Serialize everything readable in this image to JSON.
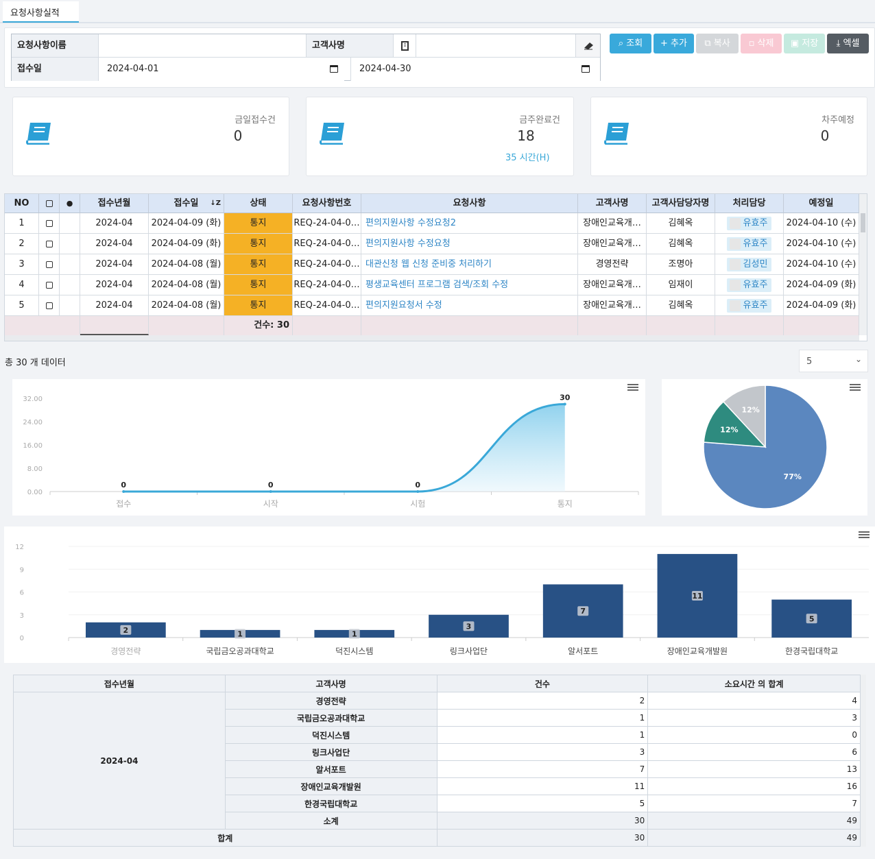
{
  "tab": {
    "label": "요청사항실적"
  },
  "filters": {
    "request_name_label": "요청사항이름",
    "request_name_value": "",
    "customer_label": "고객사명",
    "customer_value": "",
    "date_label": "접수일",
    "date_from": "2024-04-01",
    "date_to": "2024-04-30"
  },
  "toolbar": {
    "search": "조회",
    "add": "추가",
    "copy": "복사",
    "delete": "삭제",
    "save": "저장",
    "excel": "엑셀"
  },
  "cards": [
    {
      "label": "금일접수건",
      "value": "0",
      "sub": ""
    },
    {
      "label": "금주완료건",
      "value": "18",
      "sub": "35 시간(H)"
    },
    {
      "label": "차주예정",
      "value": "0",
      "sub": ""
    }
  ],
  "grid": {
    "headers": [
      "NO",
      "",
      "",
      "접수년월",
      "접수일",
      "상태",
      "요청사항번호",
      "요청사항",
      "고객사명",
      "고객사담당자명",
      "처리담당",
      "예정일"
    ],
    "rows": [
      [
        "1",
        "2024-04",
        "2024-04-09 (화)",
        "통지",
        "REQ-24-04-0…",
        "편의지원사항 수정요청2",
        "장애인교육개…",
        "김혜옥",
        "유효주",
        "2024-04-10 (수)"
      ],
      [
        "2",
        "2024-04",
        "2024-04-09 (화)",
        "통지",
        "REQ-24-04-0…",
        "편의지원사항 수정요청",
        "장애인교육개…",
        "김혜옥",
        "유효주",
        "2024-04-10 (수)"
      ],
      [
        "3",
        "2024-04",
        "2024-04-08 (월)",
        "통지",
        "REQ-24-04-0…",
        "대관신청 웹 신청 준비중 처리하기",
        "경영전략",
        "조명아",
        "김성민",
        "2024-04-10 (수)"
      ],
      [
        "4",
        "2024-04",
        "2024-04-08 (월)",
        "통지",
        "REQ-24-04-0…",
        "평생교육센터 프로그램 검색/조회 수정",
        "장애인교육개…",
        "임재이",
        "유효주",
        "2024-04-09 (화)"
      ],
      [
        "5",
        "2024-04",
        "2024-04-08 (월)",
        "통지",
        "REQ-24-04-0…",
        "편의지원요청서 수정",
        "장애인교육개…",
        "김혜옥",
        "유효주",
        "2024-04-09 (화)"
      ]
    ],
    "footer_count": "건수: 30"
  },
  "pager": {
    "total_text": "총 30 개 데이터",
    "page_size": "5"
  },
  "chart_data": [
    {
      "type": "area",
      "categories": [
        "접수",
        "시작",
        "시험",
        "통지"
      ],
      "values": [
        0,
        0,
        0,
        30
      ],
      "ylim": [
        0,
        32
      ],
      "yticks": [
        "0.00",
        "8.00",
        "16.00",
        "24.00",
        "32.00"
      ],
      "grid": false
    },
    {
      "type": "pie",
      "slices": [
        {
          "label": "77%",
          "value": 77,
          "color": "#5b87bf"
        },
        {
          "label": "12%",
          "value": 12,
          "color": "#2e8b7f"
        },
        {
          "label": "12%",
          "value": 12,
          "color": "#c2c6cb"
        }
      ]
    },
    {
      "type": "bar",
      "categories": [
        "경영전략",
        "국립금오공과대학교",
        "덕진시스템",
        "링크사업단",
        "알서포트",
        "장애인교육개발원",
        "한경국립대학교"
      ],
      "values": [
        2,
        1,
        1,
        3,
        7,
        11,
        5
      ],
      "ylim": [
        0,
        12
      ],
      "yticks": [
        "0",
        "3",
        "6",
        "9",
        "12"
      ],
      "color": "#285185",
      "grid": true
    }
  ],
  "summary": {
    "headers": [
      "접수년월",
      "고객사명",
      "건수",
      "소요시간 의 합계"
    ],
    "month": "2024-04",
    "rows": [
      [
        "경영전략",
        "2",
        "4"
      ],
      [
        "국립금오공과대학교",
        "1",
        "3"
      ],
      [
        "덕진시스템",
        "1",
        "0"
      ],
      [
        "링크사업단",
        "3",
        "6"
      ],
      [
        "알서포트",
        "7",
        "13"
      ],
      [
        "장애인교육개발원",
        "11",
        "16"
      ],
      [
        "한경국립대학교",
        "5",
        "7"
      ]
    ],
    "subtotal_label": "소계",
    "subtotal": [
      "30",
      "49"
    ],
    "total_label": "합계",
    "total": [
      "30",
      "49"
    ]
  }
}
